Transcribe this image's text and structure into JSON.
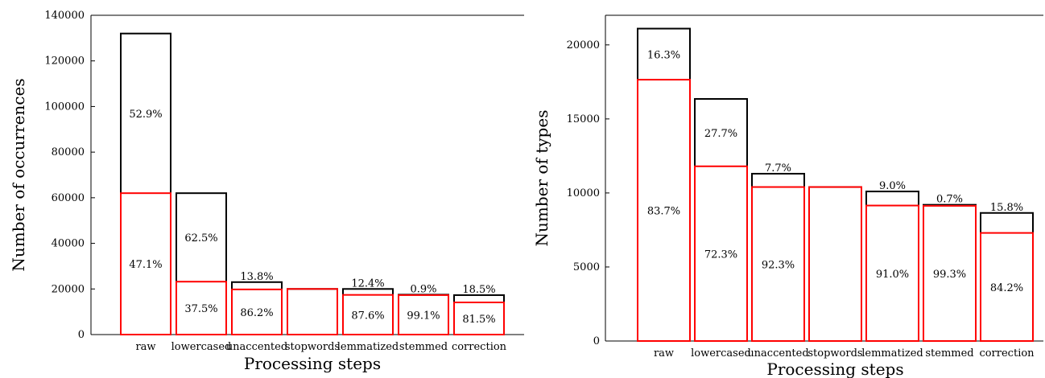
{
  "chart_data": [
    {
      "type": "bar",
      "xlabel": "Processing steps",
      "ylabel": "Number of occurrences",
      "ylim": [
        0,
        140000
      ],
      "yticks": [
        0,
        20000,
        40000,
        60000,
        80000,
        100000,
        120000,
        140000
      ],
      "categories": [
        "raw",
        "lowercased",
        "unaccented",
        "stopwords",
        "lemmatized",
        "stemmed",
        "correction"
      ],
      "series": [
        {
          "name": "",
          "color": "#000000",
          "values": [
            132000,
            62000,
            23000,
            20000,
            20000,
            17500,
            17300
          ]
        },
        {
          "name": "",
          "color": "#ff0000",
          "values": [
            62000,
            23200,
            19800,
            20000,
            17400,
            17300,
            14100
          ]
        }
      ],
      "labels_upper": [
        "52.9%",
        "62.5%",
        "13.8%",
        "",
        "12.4%",
        "0.9%",
        "18.5%"
      ],
      "labels_lower": [
        "47.1%",
        "37.5%",
        "86.2%",
        "",
        "87.6%",
        "99.1%",
        "81.5%"
      ]
    },
    {
      "type": "bar",
      "xlabel": "Processing steps",
      "ylabel": "Number of types",
      "ylim": [
        0,
        22000
      ],
      "yticks": [
        0,
        5000,
        10000,
        15000,
        20000
      ],
      "categories": [
        "raw",
        "lowercased",
        "unaccented",
        "stopwords",
        "lemmatized",
        "stemmed",
        "correction"
      ],
      "series": [
        {
          "name": "",
          "color": "#000000",
          "values": [
            21100,
            16350,
            11300,
            10400,
            10100,
            9200,
            8650
          ]
        },
        {
          "name": "",
          "color": "#ff0000",
          "values": [
            17650,
            11800,
            10400,
            10400,
            9150,
            9130,
            7300
          ]
        }
      ],
      "labels_upper": [
        "16.3%",
        "27.7%",
        "7.7%",
        "",
        "9.0%",
        "0.7%",
        "15.8%"
      ],
      "labels_lower": [
        "83.7%",
        "72.3%",
        "92.3%",
        "",
        "91.0%",
        "99.3%",
        "84.2%"
      ]
    }
  ]
}
